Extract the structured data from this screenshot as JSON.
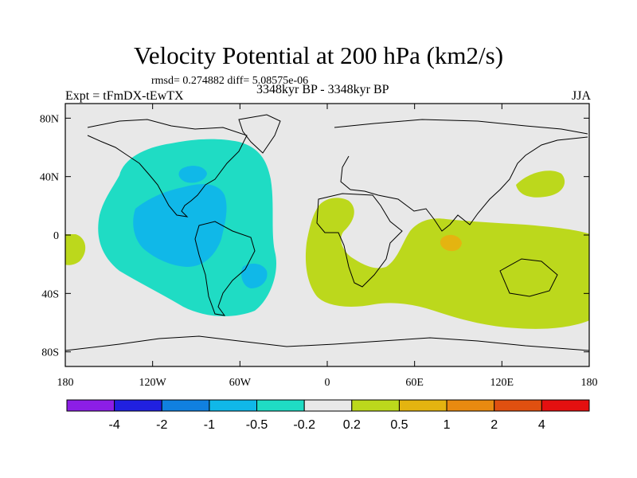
{
  "title": "Velocity Potential at 200 hPa (km2/s)",
  "stats": "rmsd= 0.274882 diff= 5.08575e-06",
  "left_label": "Expt = tFmDX-tEwTX",
  "center_label": "3348kyr BP - 3348kyr BP",
  "right_label": "JJA",
  "lat_ticks": [
    {
      "lat": 80,
      "label": "80N"
    },
    {
      "lat": 40,
      "label": "40N"
    },
    {
      "lat": 0,
      "label": "0"
    },
    {
      "lat": -40,
      "label": "40S"
    },
    {
      "lat": -80,
      "label": "80S"
    }
  ],
  "lon_ticks": [
    {
      "lon": -180,
      "label": "180"
    },
    {
      "lon": -120,
      "label": "120W"
    },
    {
      "lon": -60,
      "label": "60W"
    },
    {
      "lon": 0,
      "label": "0"
    },
    {
      "lon": 60,
      "label": "60E"
    },
    {
      "lon": 120,
      "label": "120E"
    },
    {
      "lon": 180,
      "label": "180"
    }
  ],
  "colorbar": {
    "colors": [
      "#8c1ee6",
      "#2020e0",
      "#1080e0",
      "#10b8e8",
      "#1fdcc4",
      "#e8e8e8",
      "#bcd81c",
      "#e4b410",
      "#e88a10",
      "#e05010",
      "#e41010"
    ],
    "labels": [
      "-4",
      "-2",
      "-1",
      "-0.5",
      "-0.2",
      "0.2",
      "0.5",
      "1",
      "2",
      "4"
    ]
  },
  "colors": {
    "background": "#e8e8e8",
    "negative_weak": "#1fdcc4",
    "negative_mid": "#10b8e8",
    "positive_weak": "#bcd81c",
    "positive_mid": "#e4b410"
  }
}
